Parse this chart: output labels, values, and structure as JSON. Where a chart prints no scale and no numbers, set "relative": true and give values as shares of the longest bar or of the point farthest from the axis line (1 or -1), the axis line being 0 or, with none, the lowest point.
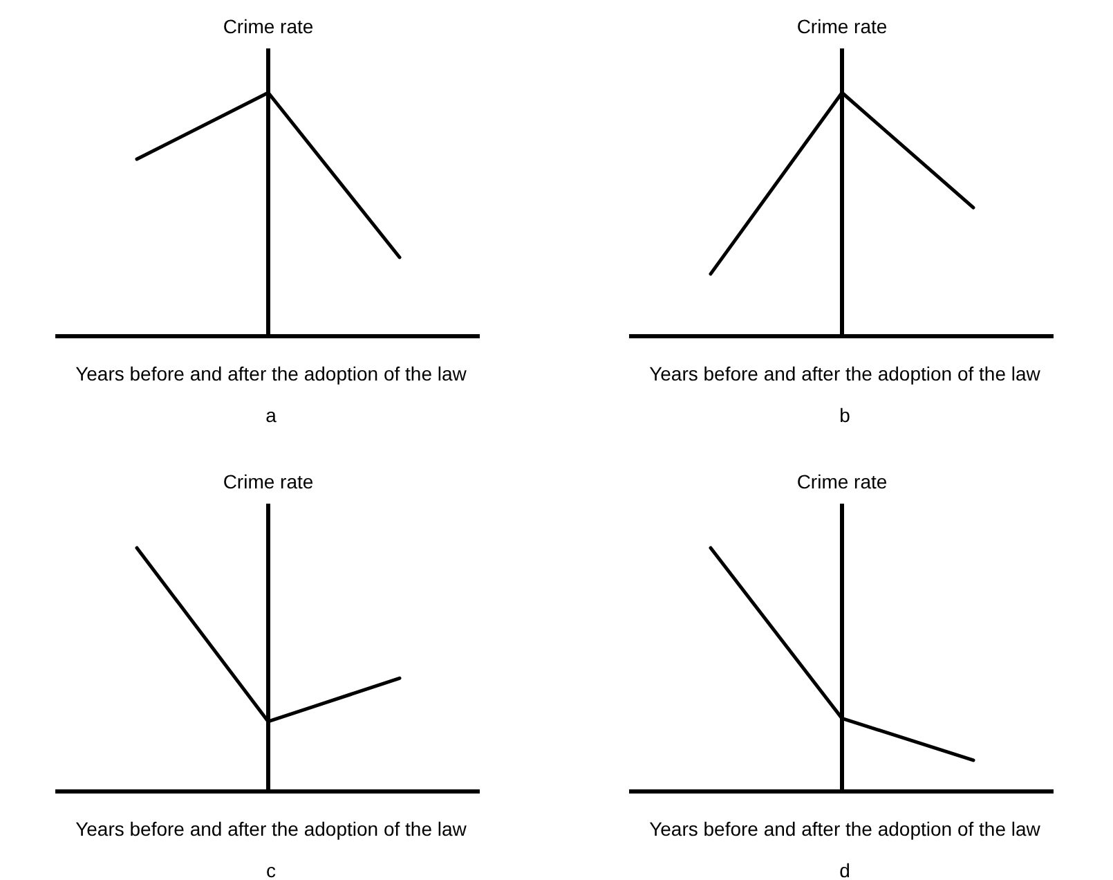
{
  "chart_data": [
    {
      "type": "line",
      "relative": true,
      "ylabel": "Crime rate",
      "xlabel": "Years before and after the adoption of the law",
      "annotations": [
        "a"
      ],
      "categories": [
        null,
        null,
        null
      ],
      "series": [
        {
          "color": "#000000",
          "values": [
            0.727,
            1,
            0.324
          ]
        }
      ]
    },
    {
      "type": "line",
      "relative": true,
      "ylabel": "Crime rate",
      "xlabel": "Years before and after the adoption of the law",
      "annotations": [
        "b"
      ],
      "categories": [
        null,
        null,
        null
      ],
      "series": [
        {
          "color": "#000000",
          "values": [
            0.256,
            1,
            0.528
          ]
        }
      ]
    },
    {
      "type": "line",
      "relative": true,
      "ylabel": "Crime rate",
      "xlabel": "Years before and after the adoption of the law",
      "annotations": [
        "c"
      ],
      "categories": [
        null,
        null,
        null
      ],
      "series": [
        {
          "color": "#000000",
          "values": [
            1,
            0.287,
            0.465
          ]
        }
      ]
    },
    {
      "type": "line",
      "relative": true,
      "ylabel": "Crime rate",
      "xlabel": "Years before and after the adoption of the law",
      "annotations": [
        "d"
      ],
      "categories": [
        null,
        null,
        null
      ],
      "series": [
        {
          "color": "#000000",
          "values": [
            1,
            0.3,
            0.128
          ]
        }
      ]
    }
  ]
}
